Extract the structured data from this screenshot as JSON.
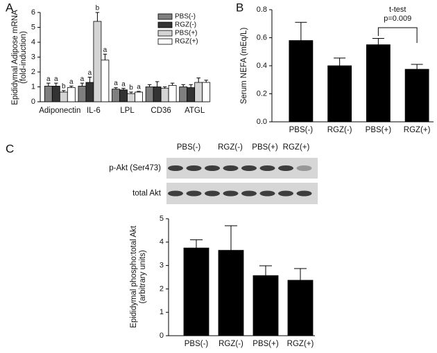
{
  "chart_data": [
    {
      "type": "grouped_bar",
      "panel": "A",
      "ylabel": [
        "Epididymal Adipose mRNA",
        "(fold-induction)"
      ],
      "categories": [
        "Adiponectin",
        "IL-6",
        "LPL",
        "CD36",
        "ATGL"
      ],
      "series": [
        {
          "name": "PBS(-)",
          "color": "#7f7f7f",
          "values": [
            1.05,
            1.05,
            0.85,
            1.0,
            1.0
          ],
          "errors": [
            0.2,
            0.2,
            0.1,
            0.15,
            0.15
          ],
          "labels": [
            "a",
            "a",
            "a",
            null,
            null
          ]
        },
        {
          "name": "RGZ(-)",
          "color": "#333333",
          "values": [
            1.05,
            1.3,
            0.8,
            1.0,
            0.95
          ],
          "errors": [
            0.2,
            0.35,
            0.1,
            0.35,
            0.2
          ],
          "labels": [
            "a",
            "a",
            "a",
            null,
            null
          ]
        },
        {
          "name": "PBS(+)",
          "color": "#d4d4d4",
          "values": [
            0.65,
            5.4,
            0.55,
            0.9,
            1.3
          ],
          "errors": [
            0.1,
            0.6,
            0.1,
            0.1,
            0.3
          ],
          "labels": [
            "b",
            "b",
            "b",
            null,
            null
          ]
        },
        {
          "name": "RGZ(+)",
          "color": "#ffffff",
          "values": [
            0.95,
            2.8,
            0.65,
            1.1,
            1.3
          ],
          "errors": [
            0.1,
            0.4,
            0.05,
            0.15,
            0.15
          ],
          "labels": [
            "a",
            "a",
            "a",
            null,
            null
          ]
        }
      ],
      "ylim": [
        0,
        6
      ],
      "yticks": [
        0,
        1,
        2,
        3,
        4,
        5,
        6
      ],
      "legend": "top-right"
    },
    {
      "type": "bar",
      "panel": "B",
      "ylabel": [
        "Serum NEFA (mEq/L)"
      ],
      "categories": [
        "PBS(-)",
        "RGZ(-)",
        "PBS(+)",
        "RGZ(+)"
      ],
      "values": [
        0.58,
        0.4,
        0.55,
        0.375
      ],
      "errors": [
        0.13,
        0.055,
        0.045,
        0.035
      ],
      "color": "#000000",
      "ylim": [
        0,
        0.8
      ],
      "yticks": [
        {
          "value": 0,
          "label": "0.0"
        },
        0.2,
        0.4,
        0.6,
        0.8
      ],
      "annotation": {
        "from": 2,
        "to": 3,
        "text": [
          "t-test",
          "p=0.009"
        ]
      }
    },
    {
      "type": "bar",
      "panel": "C",
      "blot_lanes": [
        "PBS(-)",
        "RGZ(-)",
        "PBS(+)",
        "RGZ(+)"
      ],
      "blot_rows": [
        "p-Akt (Ser473)",
        "total Akt"
      ],
      "ylabel": [
        "Epididymal phospho:total Akt",
        "(arbitrary units)"
      ],
      "categories": [
        "PBS(-)",
        "RGZ(-)",
        "PBS(+)",
        "RGZ(+)"
      ],
      "values": [
        3.75,
        3.65,
        2.57,
        2.37
      ],
      "errors": [
        0.35,
        1.05,
        0.42,
        0.5
      ],
      "color": "#000000",
      "ylim": [
        0,
        5
      ],
      "yticks": [
        0,
        1,
        2,
        3,
        4,
        5
      ]
    }
  ]
}
